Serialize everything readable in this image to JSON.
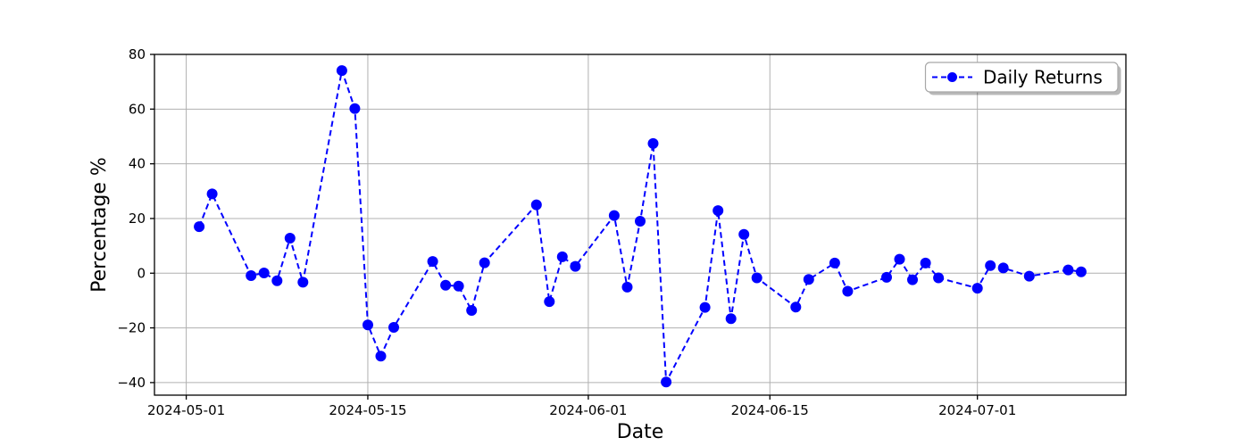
{
  "chart_data": {
    "type": "line",
    "title": "",
    "xlabel": "Date",
    "ylabel": "Percentage %",
    "grid": true,
    "legend_position": "upper right",
    "line_style": "dashed",
    "marker": "circle",
    "series_color": "#0000ff",
    "grid_color": "#b0b0b0",
    "spine_color": "#000000",
    "x_tick_labels": [
      "2024-05-01",
      "2024-05-15",
      "2024-06-01",
      "2024-06-15",
      "2024-07-01"
    ],
    "y_ticks": [
      -40,
      -20,
      0,
      20,
      40,
      60,
      80
    ],
    "xlim_days_from_2024_05_01": [
      -2.45,
      72.45
    ],
    "ylim": [
      -44.6,
      80.0
    ],
    "series": [
      {
        "name": "Daily Returns",
        "dates": [
          "2024-05-02",
          "2024-05-03",
          "2024-05-06",
          "2024-05-07",
          "2024-05-08",
          "2024-05-09",
          "2024-05-10",
          "2024-05-13",
          "2024-05-14",
          "2024-05-15",
          "2024-05-16",
          "2024-05-17",
          "2024-05-20",
          "2024-05-21",
          "2024-05-22",
          "2024-05-23",
          "2024-05-24",
          "2024-05-28",
          "2024-05-29",
          "2024-05-30",
          "2024-05-31",
          "2024-06-03",
          "2024-06-04",
          "2024-06-05",
          "2024-06-06",
          "2024-06-07",
          "2024-06-10",
          "2024-06-11",
          "2024-06-12",
          "2024-06-13",
          "2024-06-14",
          "2024-06-17",
          "2024-06-18",
          "2024-06-20",
          "2024-06-21",
          "2024-06-24",
          "2024-06-25",
          "2024-06-26",
          "2024-06-27",
          "2024-06-28",
          "2024-07-01",
          "2024-07-02",
          "2024-07-03",
          "2024-07-05",
          "2024-07-08",
          "2024-07-09"
        ],
        "values": [
          17.0,
          29.0,
          -0.9,
          0.1,
          -2.8,
          12.8,
          -3.3,
          74.1,
          60.2,
          -18.9,
          -30.3,
          -19.8,
          4.3,
          -4.4,
          -4.7,
          -13.6,
          3.8,
          25.0,
          -10.4,
          6.0,
          2.5,
          21.1,
          -5.1,
          19.0,
          47.4,
          -39.8,
          -12.5,
          22.9,
          -16.6,
          14.2,
          -1.7,
          -12.4,
          -2.3,
          3.7,
          -6.6,
          -1.5,
          5.1,
          -2.4,
          3.7,
          -1.7,
          -5.5,
          2.8,
          1.9,
          -1.1,
          1.2,
          0.5
        ]
      }
    ]
  },
  "legend": {
    "label": "Daily Returns"
  }
}
